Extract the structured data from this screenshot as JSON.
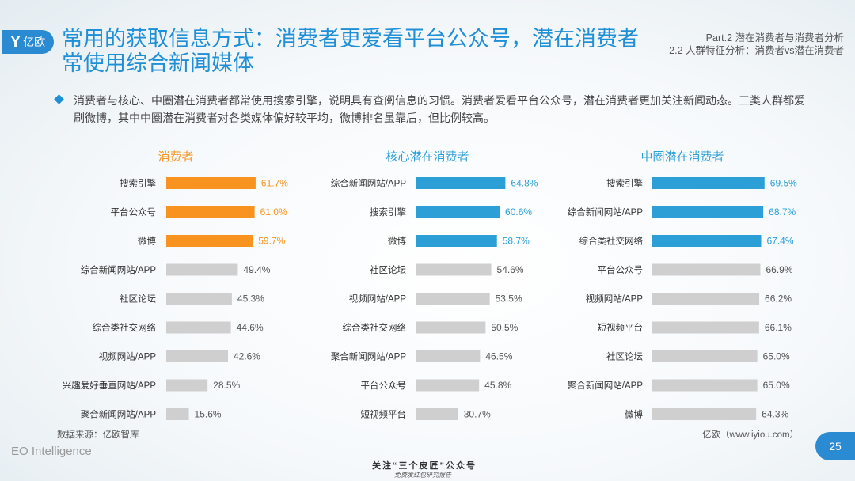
{
  "logo": {
    "text": "亿欧"
  },
  "header": {
    "title": "常用的获取信息方式：消费者更爱看平台公众号，潜在消费者常使用综合新闻媒体",
    "part": "Part.2 潜在消费者与消费者分析",
    "section": "2.2 人群特征分析：消费者vs潜在消费者"
  },
  "description": "消费者与核心、中圈潜在消费者都常使用搜索引擎，说明具有查阅信息的习惯。消费者爱看平台公众号，潜在消费者更加关注新闻动态。三类人群都爱刷微博，其中中圈潜在消费者对各类媒体偏好较平均，微博排名虽靠后，但比例较高。",
  "footer": {
    "source": "数据来源：亿欧智库",
    "site": "亿欧（www.iyiou.com）",
    "brand": "EO Intelligence",
    "page": "25",
    "watermark_line1": "关注“三个皮匠”公众号",
    "watermark_line2": "免费发红包研究报告"
  },
  "colors": {
    "orange": "#f7931e",
    "blue": "#2b9fd6",
    "gray": "#cfcfcf",
    "accent": "#1f8fd6"
  },
  "chart_data": [
    {
      "type": "bar",
      "title": "消费者",
      "categories": [
        "搜索引擎",
        "平台公众号",
        "微博",
        "综合新闻网站/APP",
        "社区论坛",
        "综合类社交网络",
        "视频网站/APP",
        "兴趣爱好垂直网站/APP",
        "聚合新闻网站/APP"
      ],
      "values": [
        61.7,
        61.0,
        59.7,
        49.4,
        45.3,
        44.6,
        42.6,
        28.5,
        15.6
      ],
      "highlight_count": 3,
      "highlight_color": "#f7931e"
    },
    {
      "type": "bar",
      "title": "核心潜在消费者",
      "categories": [
        "综合新闻网站/APP",
        "搜索引擎",
        "微博",
        "社区论坛",
        "视频网站/APP",
        "综合类社交网络",
        "聚合新闻网站/APP",
        "平台公众号",
        "短视频平台"
      ],
      "values": [
        64.8,
        60.6,
        58.7,
        54.6,
        53.5,
        50.5,
        46.5,
        45.8,
        30.7
      ],
      "highlight_count": 3,
      "highlight_color": "#2b9fd6"
    },
    {
      "type": "bar",
      "title": "中圈潜在消费者",
      "categories": [
        "搜索引擎",
        "综合新闻网站/APP",
        "综合类社交网络",
        "平台公众号",
        "视频网站/APP",
        "短视频平台",
        "社区论坛",
        "聚合新闻网站/APP",
        "微博"
      ],
      "values": [
        69.5,
        68.7,
        67.4,
        66.9,
        66.2,
        66.1,
        65.0,
        65.0,
        64.3
      ],
      "highlight_count": 3,
      "highlight_color": "#2b9fd6"
    }
  ]
}
